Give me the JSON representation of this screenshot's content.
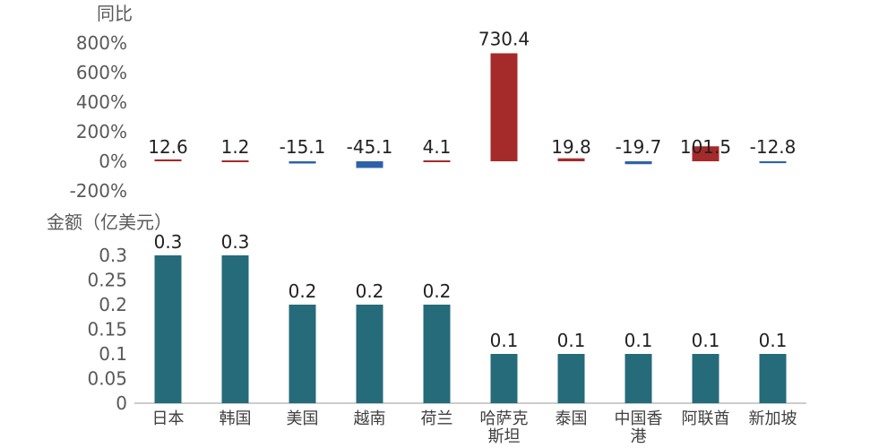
{
  "chart_data": [
    {
      "type": "bar",
      "ylabel": "同比",
      "categories": [
        "日本",
        "韩国",
        "美国",
        "越南",
        "荷兰",
        "哈萨克斯坦",
        "泰国",
        "中国香港",
        "阿联酋",
        "新加坡"
      ],
      "values": [
        12.6,
        1.2,
        -15.1,
        -45.1,
        4.1,
        730.4,
        19.8,
        -19.7,
        101.5,
        -12.8
      ],
      "data_labels": [
        "12.6",
        "1.2",
        "-15.1",
        "-45.1",
        "4.1",
        "730.4",
        "19.8",
        "-19.7",
        "101.5",
        "-12.8"
      ],
      "ylim": [
        -200,
        800
      ],
      "yticks": [
        "800%",
        "600%",
        "400%",
        "200%",
        "0%",
        "-200%"
      ],
      "colors": {
        "positive": "#a52a2a",
        "negative": "#2e62a8"
      },
      "grid": false
    },
    {
      "type": "bar",
      "ylabel": "金额（亿美元）",
      "categories": [
        "日本",
        "韩国",
        "美国",
        "越南",
        "荷兰",
        "哈萨克斯坦",
        "泰国",
        "中国香港",
        "阿联酋",
        "新加坡"
      ],
      "category_lines": [
        [
          "日本"
        ],
        [
          "韩国"
        ],
        [
          "美国"
        ],
        [
          "越南"
        ],
        [
          "荷兰"
        ],
        [
          "哈萨克",
          "斯坦"
        ],
        [
          "泰国"
        ],
        [
          "中国香",
          "港"
        ],
        [
          "阿联酋"
        ],
        [
          "新加坡"
        ]
      ],
      "values": [
        0.3,
        0.3,
        0.2,
        0.2,
        0.2,
        0.1,
        0.1,
        0.1,
        0.1,
        0.1
      ],
      "data_labels": [
        "0.3",
        "0.3",
        "0.2",
        "0.2",
        "0.2",
        "0.1",
        "0.1",
        "0.1",
        "0.1",
        "0.1"
      ],
      "ylim": [
        0,
        0.3
      ],
      "yticks": [
        "0.3",
        "0.25",
        "0.2",
        "0.15",
        "0.1",
        "0.05",
        "0"
      ],
      "colors": {
        "bar": "#256b7a"
      },
      "grid": false
    }
  ]
}
